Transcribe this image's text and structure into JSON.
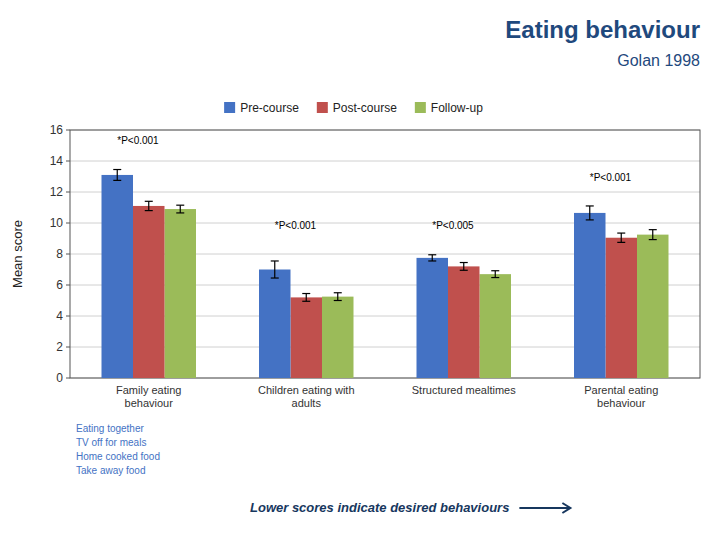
{
  "chart_data": {
    "type": "bar",
    "title": "Eating behaviour",
    "subtitle": "Golan 1998",
    "ylabel": "Mean score",
    "ylim": [
      0,
      16
    ],
    "yticks": [
      0,
      2,
      4,
      6,
      8,
      10,
      12,
      14,
      16
    ],
    "grid": true,
    "categories": [
      "Family eating\nbehaviour",
      "Children eating with\nadults",
      "Structured mealtimes",
      "Parental eating\nbehaviour"
    ],
    "series": [
      {
        "name": "Pre-course",
        "color": "#4472C4",
        "values": [
          13.1,
          7.0,
          7.75,
          10.65
        ],
        "errors": [
          0.35,
          0.55,
          0.2,
          0.45
        ]
      },
      {
        "name": "Post-course",
        "color": "#C0504D",
        "values": [
          11.1,
          5.2,
          7.2,
          9.05
        ],
        "errors": [
          0.3,
          0.25,
          0.25,
          0.3
        ]
      },
      {
        "name": "Follow-up",
        "color": "#9BBB59",
        "values": [
          10.9,
          5.25,
          6.7,
          9.25
        ],
        "errors": [
          0.25,
          0.25,
          0.22,
          0.32
        ]
      }
    ],
    "annotations": [
      {
        "text": "*P<0.001",
        "category": "Family eating\nbehaviour",
        "y": 15.0
      },
      {
        "text": "*P<0.001",
        "category": "Children eating with\nadults",
        "y": 9.5
      },
      {
        "text": "*P<0.005",
        "category": "Structured mealtimes",
        "y": 9.5
      },
      {
        "text": "*P<0.001",
        "category": "Parental eating\nbehaviour",
        "y": 12.6
      }
    ],
    "category_notes": [
      "Eating together",
      "TV off for meals",
      "Home cooked food",
      "Take away food"
    ],
    "bottom_note": "Lower scores indicate desired behaviours"
  }
}
